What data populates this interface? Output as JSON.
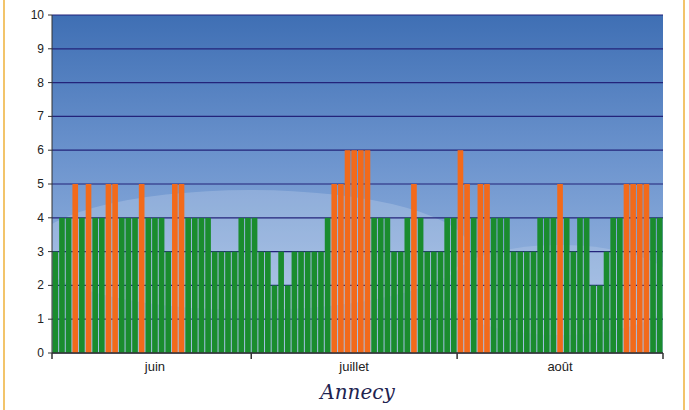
{
  "chart_data": {
    "type": "bar",
    "title": "Annecy",
    "categories": [
      null,
      null,
      null,
      null,
      null,
      null,
      null,
      null,
      null,
      null,
      null,
      null,
      null,
      null,
      null,
      "juin",
      null,
      null,
      null,
      null,
      null,
      null,
      null,
      null,
      null,
      null,
      null,
      null,
      null,
      null,
      null,
      null,
      null,
      null,
      null,
      null,
      null,
      null,
      null,
      null,
      null,
      null,
      null,
      null,
      null,
      "juillet",
      null,
      null,
      null,
      null,
      null,
      null,
      null,
      null,
      null,
      null,
      null,
      null,
      null,
      null,
      null,
      null,
      null,
      null,
      null,
      null,
      null,
      null,
      null,
      null,
      null,
      null,
      null,
      null,
      null,
      null,
      "août",
      null,
      null,
      null,
      null,
      null,
      null,
      null,
      null,
      null,
      null,
      null,
      null,
      null,
      null,
      null
    ],
    "values": [
      3,
      4,
      4,
      5,
      4,
      5,
      4,
      4,
      5,
      5,
      4,
      4,
      4,
      5,
      4,
      4,
      4,
      3,
      5,
      5,
      4,
      4,
      4,
      4,
      3,
      3,
      3,
      3,
      4,
      4,
      4,
      3,
      3,
      2,
      3,
      2,
      3,
      3,
      3,
      3,
      3,
      4,
      5,
      5,
      6,
      6,
      6,
      6,
      4,
      4,
      4,
      3,
      3,
      4,
      5,
      4,
      3,
      3,
      3,
      4,
      4,
      6,
      5,
      4,
      5,
      5,
      4,
      4,
      4,
      3,
      3,
      3,
      3,
      4,
      4,
      4,
      5,
      4,
      3,
      4,
      4,
      2,
      2,
      3,
      4,
      4,
      5,
      5,
      5,
      5,
      4,
      4
    ],
    "colors": [
      "#1a8c2e",
      "#1a8c2e",
      "#1a8c2e",
      "#f26a1b",
      "#1a8c2e",
      "#f26a1b",
      "#1a8c2e",
      "#1a8c2e",
      "#f26a1b",
      "#f26a1b",
      "#1a8c2e",
      "#1a8c2e",
      "#1a8c2e",
      "#f26a1b",
      "#1a8c2e",
      "#1a8c2e",
      "#1a8c2e",
      "#1a8c2e",
      "#f26a1b",
      "#f26a1b",
      "#1a8c2e",
      "#1a8c2e",
      "#1a8c2e",
      "#1a8c2e",
      "#1a8c2e",
      "#1a8c2e",
      "#1a8c2e",
      "#1a8c2e",
      "#1a8c2e",
      "#1a8c2e",
      "#1a8c2e",
      "#1a8c2e",
      "#1a8c2e",
      "#1a8c2e",
      "#1a8c2e",
      "#1a8c2e",
      "#1a8c2e",
      "#1a8c2e",
      "#1a8c2e",
      "#1a8c2e",
      "#1a8c2e",
      "#1a8c2e",
      "#f26a1b",
      "#f26a1b",
      "#f26a1b",
      "#f26a1b",
      "#f26a1b",
      "#f26a1b",
      "#1a8c2e",
      "#1a8c2e",
      "#1a8c2e",
      "#1a8c2e",
      "#1a8c2e",
      "#1a8c2e",
      "#f26a1b",
      "#1a8c2e",
      "#1a8c2e",
      "#1a8c2e",
      "#1a8c2e",
      "#1a8c2e",
      "#1a8c2e",
      "#f26a1b",
      "#f26a1b",
      "#1a8c2e",
      "#f26a1b",
      "#f26a1b",
      "#1a8c2e",
      "#1a8c2e",
      "#1a8c2e",
      "#1a8c2e",
      "#1a8c2e",
      "#1a8c2e",
      "#1a8c2e",
      "#1a8c2e",
      "#1a8c2e",
      "#1a8c2e",
      "#f26a1b",
      "#1a8c2e",
      "#1a8c2e",
      "#1a8c2e",
      "#1a8c2e",
      "#1a8c2e",
      "#1a8c2e",
      "#1a8c2e",
      "#1a8c2e",
      "#1a8c2e",
      "#f26a1b",
      "#f26a1b",
      "#f26a1b",
      "#f26a1b",
      "#1a8c2e",
      "#1a8c2e"
    ],
    "ylim": [
      0,
      10
    ],
    "yticks": [
      0,
      1,
      2,
      3,
      4,
      5,
      6,
      7,
      8,
      9,
      10
    ],
    "grid": true
  }
}
